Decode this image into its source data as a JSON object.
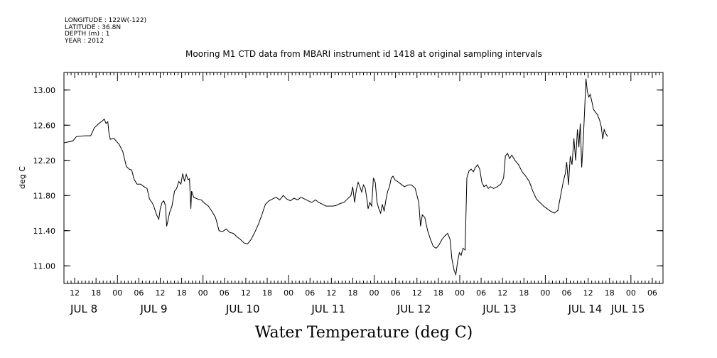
{
  "header": {
    "lines": [
      "LONGITUDE : 122W(-122)",
      "LATITUDE : 36.8N",
      "DEPTH (m) : 1",
      "YEAR : 2012"
    ]
  },
  "chart_data": {
    "type": "line",
    "title": "Mooring M1 CTD data from MBARI instrument id 1418 at original sampling intervals",
    "xlabel": "Water Temperature (deg C)",
    "ylabel": "deg C",
    "xlim_hours": [
      9,
      177
    ],
    "ylim": [
      10.8,
      13.2
    ],
    "y_ticks": [
      {
        "value": 11.0,
        "label": "11.00"
      },
      {
        "value": 11.4,
        "label": "11.40"
      },
      {
        "value": 11.8,
        "label": "11.80"
      },
      {
        "value": 12.2,
        "label": "12.20"
      },
      {
        "value": 12.6,
        "label": "12.60"
      },
      {
        "value": 13.0,
        "label": "13.00"
      }
    ],
    "x_hour_ticks": [
      {
        "hour": 12,
        "label": "12"
      },
      {
        "hour": 18,
        "label": "18"
      },
      {
        "hour": 24,
        "label": "00"
      },
      {
        "hour": 30,
        "label": "06"
      },
      {
        "hour": 36,
        "label": "12"
      },
      {
        "hour": 42,
        "label": "18"
      },
      {
        "hour": 48,
        "label": "00"
      },
      {
        "hour": 54,
        "label": "06"
      },
      {
        "hour": 60,
        "label": "12"
      },
      {
        "hour": 66,
        "label": "18"
      },
      {
        "hour": 72,
        "label": "00"
      },
      {
        "hour": 78,
        "label": "06"
      },
      {
        "hour": 84,
        "label": "12"
      },
      {
        "hour": 90,
        "label": "18"
      },
      {
        "hour": 96,
        "label": "00"
      },
      {
        "hour": 102,
        "label": "06"
      },
      {
        "hour": 108,
        "label": "12"
      },
      {
        "hour": 114,
        "label": "18"
      },
      {
        "hour": 120,
        "label": "00"
      },
      {
        "hour": 126,
        "label": "06"
      },
      {
        "hour": 132,
        "label": "12"
      },
      {
        "hour": 138,
        "label": "18"
      },
      {
        "hour": 144,
        "label": "00"
      },
      {
        "hour": 150,
        "label": "06"
      },
      {
        "hour": 156,
        "label": "12"
      },
      {
        "hour": 162,
        "label": "18"
      },
      {
        "hour": 168,
        "label": "00"
      },
      {
        "hour": 174,
        "label": "06"
      }
    ],
    "x_day_labels": [
      {
        "hour": 12,
        "label": "JUL  8"
      },
      {
        "hour": 36,
        "label": "JUL  9"
      },
      {
        "hour": 60,
        "label": "JUL 10"
      },
      {
        "hour": 84,
        "label": "JUL 11"
      },
      {
        "hour": 108,
        "label": "JUL 12"
      },
      {
        "hour": 132,
        "label": "JUL 13"
      },
      {
        "hour": 156,
        "label": "JUL 14"
      },
      {
        "hour": 168,
        "label": "JUL 15"
      }
    ],
    "series": [
      {
        "color": "#000000",
        "points": [
          [
            9.0,
            12.4
          ],
          [
            11.5,
            12.42
          ],
          [
            12.5,
            12.47
          ],
          [
            15.0,
            12.48
          ],
          [
            16.5,
            12.48
          ],
          [
            17.5,
            12.57
          ],
          [
            18.8,
            12.62
          ],
          [
            19.8,
            12.65
          ],
          [
            20.3,
            12.67
          ],
          [
            20.8,
            12.62
          ],
          [
            21.3,
            12.64
          ],
          [
            21.6,
            12.52
          ],
          [
            22.0,
            12.44
          ],
          [
            23.0,
            12.45
          ],
          [
            24.5,
            12.38
          ],
          [
            25.5,
            12.3
          ],
          [
            26.5,
            12.13
          ],
          [
            27.3,
            12.1
          ],
          [
            28.0,
            12.09
          ],
          [
            28.7,
            11.98
          ],
          [
            29.5,
            11.93
          ],
          [
            30.5,
            11.93
          ],
          [
            31.5,
            11.9
          ],
          [
            32.3,
            11.88
          ],
          [
            33.0,
            11.76
          ],
          [
            34.0,
            11.7
          ],
          [
            35.0,
            11.58
          ],
          [
            35.6,
            11.53
          ],
          [
            36.0,
            11.65
          ],
          [
            36.5,
            11.72
          ],
          [
            37.0,
            11.74
          ],
          [
            37.5,
            11.68
          ],
          [
            37.8,
            11.45
          ],
          [
            38.2,
            11.52
          ],
          [
            38.6,
            11.6
          ],
          [
            39.3,
            11.68
          ],
          [
            40.0,
            11.85
          ],
          [
            40.6,
            11.88
          ],
          [
            41.2,
            11.96
          ],
          [
            41.8,
            11.93
          ],
          [
            42.3,
            12.05
          ],
          [
            42.8,
            11.96
          ],
          [
            43.3,
            12.04
          ],
          [
            43.8,
            11.98
          ],
          [
            44.2,
            11.99
          ],
          [
            44.6,
            11.65
          ],
          [
            44.8,
            11.85
          ],
          [
            45.4,
            11.78
          ],
          [
            46.5,
            11.76
          ],
          [
            47.5,
            11.75
          ],
          [
            48.5,
            11.71
          ],
          [
            49.5,
            11.68
          ],
          [
            50.5,
            11.62
          ],
          [
            51.5,
            11.55
          ],
          [
            52.5,
            11.4
          ],
          [
            53.5,
            11.39
          ],
          [
            54.5,
            11.42
          ],
          [
            55.5,
            11.38
          ],
          [
            56.5,
            11.37
          ],
          [
            57.5,
            11.33
          ],
          [
            58.5,
            11.3
          ],
          [
            59.5,
            11.26
          ],
          [
            60.5,
            11.25
          ],
          [
            61.5,
            11.3
          ],
          [
            62.5,
            11.38
          ],
          [
            63.5,
            11.47
          ],
          [
            64.5,
            11.58
          ],
          [
            65.5,
            11.7
          ],
          [
            66.5,
            11.74
          ],
          [
            67.5,
            11.76
          ],
          [
            68.5,
            11.78
          ],
          [
            69.5,
            11.75
          ],
          [
            70.5,
            11.8
          ],
          [
            71.5,
            11.76
          ],
          [
            72.5,
            11.74
          ],
          [
            73.5,
            11.77
          ],
          [
            74.5,
            11.75
          ],
          [
            75.5,
            11.78
          ],
          [
            76.5,
            11.76
          ],
          [
            77.5,
            11.74
          ],
          [
            78.5,
            11.72
          ],
          [
            79.5,
            11.75
          ],
          [
            80.5,
            11.72
          ],
          [
            81.5,
            11.7
          ],
          [
            82.5,
            11.68
          ],
          [
            83.5,
            11.68
          ],
          [
            84.5,
            11.68
          ],
          [
            85.5,
            11.69
          ],
          [
            86.5,
            11.71
          ],
          [
            87.5,
            11.72
          ],
          [
            88.5,
            11.76
          ],
          [
            89.5,
            11.8
          ],
          [
            90.0,
            11.9
          ],
          [
            90.5,
            11.72
          ],
          [
            91.0,
            11.87
          ],
          [
            91.5,
            11.95
          ],
          [
            92.0,
            11.9
          ],
          [
            92.5,
            11.84
          ],
          [
            93.0,
            11.92
          ],
          [
            93.5,
            11.88
          ],
          [
            94.0,
            11.75
          ],
          [
            94.3,
            11.65
          ],
          [
            94.8,
            11.72
          ],
          [
            95.3,
            11.68
          ],
          [
            95.8,
            12.0
          ],
          [
            96.3,
            11.95
          ],
          [
            96.8,
            11.72
          ],
          [
            97.3,
            11.65
          ],
          [
            97.8,
            11.6
          ],
          [
            98.3,
            11.7
          ],
          [
            98.8,
            11.62
          ],
          [
            99.3,
            11.75
          ],
          [
            99.8,
            11.85
          ],
          [
            100.3,
            11.9
          ],
          [
            100.8,
            12.0
          ],
          [
            101.3,
            12.02
          ],
          [
            101.8,
            11.98
          ],
          [
            102.5,
            11.96
          ],
          [
            103.5,
            11.93
          ],
          [
            104.5,
            11.9
          ],
          [
            105.5,
            11.92
          ],
          [
            106.5,
            11.92
          ],
          [
            107.5,
            11.88
          ],
          [
            108.0,
            11.8
          ],
          [
            108.5,
            11.72
          ],
          [
            109.0,
            11.45
          ],
          [
            109.5,
            11.58
          ],
          [
            110.2,
            11.55
          ],
          [
            111.0,
            11.4
          ],
          [
            111.8,
            11.3
          ],
          [
            112.6,
            11.22
          ],
          [
            113.4,
            11.2
          ],
          [
            114.2,
            11.24
          ],
          [
            115.0,
            11.3
          ],
          [
            115.8,
            11.34
          ],
          [
            116.6,
            11.37
          ],
          [
            117.3,
            11.3
          ],
          [
            117.8,
            11.08
          ],
          [
            118.4,
            10.95
          ],
          [
            118.9,
            10.9
          ],
          [
            119.4,
            11.05
          ],
          [
            119.9,
            11.15
          ],
          [
            120.4,
            11.12
          ],
          [
            120.9,
            11.2
          ],
          [
            121.5,
            11.18
          ],
          [
            122.0,
            12.0
          ],
          [
            122.6,
            12.08
          ],
          [
            123.2,
            12.1
          ],
          [
            123.8,
            12.07
          ],
          [
            124.4,
            12.12
          ],
          [
            125.0,
            12.15
          ],
          [
            125.6,
            12.1
          ],
          [
            126.2,
            11.95
          ],
          [
            126.8,
            11.9
          ],
          [
            127.4,
            11.92
          ],
          [
            128.0,
            11.88
          ],
          [
            128.6,
            11.9
          ],
          [
            129.5,
            11.88
          ],
          [
            130.5,
            11.9
          ],
          [
            131.5,
            11.93
          ],
          [
            132.3,
            12.0
          ],
          [
            132.8,
            12.25
          ],
          [
            133.4,
            12.28
          ],
          [
            134.0,
            12.22
          ],
          [
            134.6,
            12.26
          ],
          [
            135.5,
            12.2
          ],
          [
            136.5,
            12.15
          ],
          [
            137.5,
            12.07
          ],
          [
            138.5,
            12.02
          ],
          [
            139.5,
            11.96
          ],
          [
            140.5,
            11.85
          ],
          [
            141.5,
            11.76
          ],
          [
            142.5,
            11.72
          ],
          [
            143.5,
            11.68
          ],
          [
            144.5,
            11.65
          ],
          [
            145.5,
            11.62
          ],
          [
            146.5,
            11.6
          ],
          [
            147.5,
            11.63
          ],
          [
            148.3,
            11.8
          ],
          [
            149.0,
            11.95
          ],
          [
            149.6,
            12.05
          ],
          [
            150.0,
            12.18
          ],
          [
            150.5,
            11.92
          ],
          [
            151.0,
            12.25
          ],
          [
            151.5,
            12.15
          ],
          [
            152.0,
            12.45
          ],
          [
            152.5,
            12.2
          ],
          [
            153.0,
            12.55
          ],
          [
            153.4,
            12.35
          ],
          [
            153.8,
            12.62
          ],
          [
            154.2,
            12.12
          ],
          [
            154.6,
            12.4
          ],
          [
            155.0,
            12.75
          ],
          [
            155.4,
            13.13
          ],
          [
            155.8,
            12.98
          ],
          [
            156.2,
            12.92
          ],
          [
            156.6,
            12.95
          ],
          [
            157.0,
            12.88
          ],
          [
            157.5,
            12.78
          ],
          [
            158.0,
            12.75
          ],
          [
            158.6,
            12.72
          ],
          [
            159.2,
            12.66
          ],
          [
            159.7,
            12.58
          ],
          [
            160.1,
            12.44
          ],
          [
            160.5,
            12.55
          ],
          [
            161.0,
            12.5
          ],
          [
            161.5,
            12.47
          ]
        ]
      }
    ]
  }
}
